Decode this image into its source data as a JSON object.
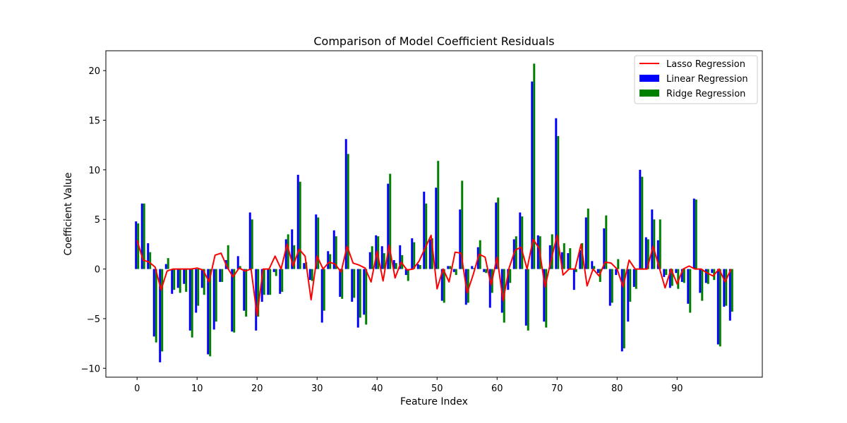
{
  "chart_data": {
    "type": "bar",
    "title": "Comparison of Model Coefficient Residuals",
    "xlabel": "Feature Index",
    "ylabel": "Coefficient Value",
    "xlim": [
      -5.2,
      104.2
    ],
    "ylim": [
      -10.9,
      22.0
    ],
    "x_ticks": [
      0,
      10,
      20,
      30,
      40,
      50,
      60,
      70,
      80,
      90
    ],
    "y_ticks": [
      -10,
      -5,
      0,
      5,
      10,
      15,
      20
    ],
    "grid": false,
    "legend_position": "top-right",
    "series": [
      {
        "name": "Linear Regression",
        "kind": "bar",
        "color": "#0000ff",
        "values": [
          4.8,
          6.6,
          2.6,
          -6.8,
          -9.4,
          0.5,
          -2.5,
          -1.9,
          -1.5,
          -6.2,
          -4.4,
          -1.9,
          -8.6,
          -6.1,
          -1.3,
          0.9,
          -6.3,
          1.3,
          -4.2,
          5.7,
          -6.2,
          -3.3,
          -2.6,
          -0.3,
          -2.5,
          3.0,
          4.0,
          9.5,
          0.6,
          -1.1,
          5.5,
          -5.4,
          1.8,
          3.9,
          -2.8,
          13.1,
          -3.3,
          -5.9,
          -4.6,
          1.7,
          3.4,
          2.3,
          8.6,
          0.9,
          2.4,
          -0.6,
          3.1,
          0.5,
          7.8,
          3.0,
          8.2,
          -3.2,
          0.3,
          -0.3,
          6.0,
          -3.6,
          0.3,
          2.2,
          -0.3,
          -3.9,
          6.7,
          -4.4,
          -2.1,
          3.0,
          5.7,
          -5.7,
          18.9,
          3.4,
          -5.3,
          2.4,
          15.2,
          1.7,
          1.6,
          -2.1,
          1.9,
          5.2,
          0.8,
          -0.4,
          4.1,
          -3.7,
          -0.6,
          -8.3,
          -5.3,
          -1.8,
          10.0,
          3.2,
          6.0,
          2.9,
          -0.8,
          -1.9,
          -0.4,
          -1.3,
          -3.5,
          7.1,
          -2.4,
          -1.4,
          -0.4,
          -7.6,
          -3.8,
          -5.2
        ]
      },
      {
        "name": "Ridge Regression",
        "kind": "bar",
        "color": "#008000",
        "values": [
          4.6,
          6.6,
          1.7,
          -7.4,
          -8.3,
          1.1,
          -2.1,
          -2.4,
          -2.3,
          -6.9,
          -3.7,
          -2.6,
          -8.8,
          -5.3,
          -1.3,
          2.4,
          -6.4,
          0.3,
          -4.8,
          5.0,
          -4.8,
          -2.6,
          -2.6,
          -0.7,
          -2.3,
          3.5,
          2.4,
          8.8,
          0.7,
          -1.2,
          5.2,
          -4.2,
          1.5,
          3.3,
          -3.0,
          11.6,
          -2.9,
          -4.9,
          -5.6,
          2.3,
          3.3,
          1.6,
          9.6,
          0.6,
          1.4,
          -1.2,
          2.7,
          0.4,
          6.6,
          3.1,
          10.9,
          -3.4,
          0.3,
          -0.6,
          8.9,
          -3.4,
          0.1,
          2.9,
          -0.4,
          -2.4,
          7.2,
          -5.4,
          -1.4,
          3.3,
          5.3,
          -6.2,
          20.7,
          3.3,
          -5.9,
          3.5,
          13.4,
          2.6,
          2.1,
          -0.3,
          2.6,
          6.1,
          0.3,
          -1.3,
          5.4,
          -3.4,
          1.0,
          -8.0,
          -3.3,
          -2.0,
          9.3,
          3.0,
          5.0,
          5.0,
          -0.6,
          -1.7,
          -2.0,
          -1.4,
          -4.4,
          7.0,
          -3.2,
          -1.5,
          -1.1,
          -7.8,
          -3.7,
          -4.3
        ]
      },
      {
        "name": "Lasso Regression",
        "kind": "line",
        "color": "#ff0000",
        "values": [
          2.9,
          0.9,
          0.7,
          0.2,
          -2.1,
          -0.2,
          0.0,
          0.0,
          0.0,
          0.0,
          0.1,
          -0.1,
          -1.3,
          1.4,
          1.6,
          0.2,
          -0.8,
          0.1,
          -0.2,
          0.0,
          -4.7,
          0.0,
          0.0,
          1.3,
          0.0,
          2.5,
          0.3,
          2.0,
          1.3,
          -3.1,
          1.3,
          0.0,
          0.7,
          0.5,
          -0.3,
          2.3,
          0.6,
          0.4,
          0.1,
          -1.3,
          1.8,
          -1.2,
          2.4,
          -0.9,
          0.7,
          -0.1,
          0.0,
          0.8,
          2.1,
          3.4,
          -2.0,
          0.0,
          -1.3,
          1.7,
          1.6,
          -2.4,
          -0.6,
          1.5,
          1.2,
          -1.6,
          1.2,
          -3.2,
          0.1,
          1.9,
          2.2,
          0.0,
          3.0,
          2.1,
          -1.8,
          0.9,
          3.4,
          -0.6,
          0.0,
          0.0,
          2.5,
          -1.7,
          0.0,
          -0.7,
          0.7,
          0.6,
          0.0,
          -1.8,
          0.9,
          0.0,
          0.0,
          0.0,
          2.3,
          0.2,
          -1.9,
          0.0,
          -1.5,
          0.0,
          0.3,
          0.0,
          0.0,
          -0.4,
          -0.7,
          0.0,
          -1.3,
          0.0
        ]
      }
    ]
  }
}
